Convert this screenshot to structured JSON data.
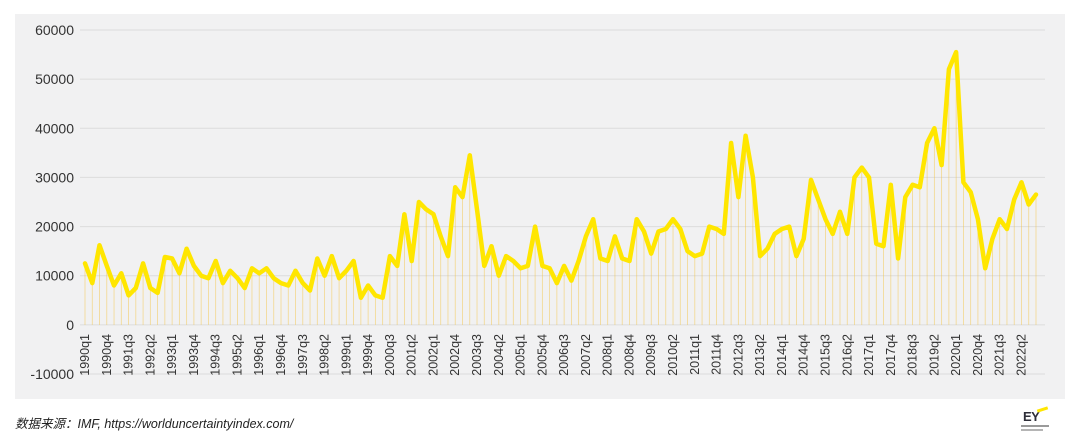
{
  "source_text": "数据来源：IMF, https://worlduncertaintyindex.com/",
  "logo_text": "EY",
  "colors": {
    "line": "#ffe600",
    "panel": "#f1f1f2",
    "grid": "#dcdcdc",
    "stem": "#f4c23c"
  },
  "chart_data": {
    "type": "line",
    "title": "",
    "xlabel": "",
    "ylabel": "",
    "ylim": [
      -10000,
      60000
    ],
    "yticks": [
      -10000,
      0,
      10000,
      20000,
      30000,
      40000,
      50000,
      60000
    ],
    "ytick_labels": [
      "-10000",
      "0",
      "10000",
      "20000",
      "30000",
      "40000",
      "50000",
      "60000"
    ],
    "grid": true,
    "legend": "none",
    "x_labels": [
      "1990q1",
      "1990q4",
      "1991q3",
      "1992q2",
      "1993q1",
      "1993q4",
      "1994q3",
      "1995q2",
      "1996q1",
      "1996q4",
      "1997q3",
      "1998q2",
      "1999q1",
      "1999q4",
      "2000q3",
      "2001q2",
      "2002q1",
      "2002q4",
      "2003q3",
      "2004q2",
      "2005q1",
      "2005q4",
      "2006q3",
      "2007q2",
      "2008q1",
      "2008q4",
      "2009q3",
      "2010q2",
      "2011q1",
      "2011q4",
      "2012q3",
      "2013q2",
      "2014q1",
      "2014q4",
      "2015q3",
      "2016q2",
      "2017q1",
      "2017q4",
      "2018q3",
      "2019q2",
      "2020q1",
      "2020q4",
      "2021q3",
      "2022q2"
    ],
    "label_every": 3,
    "values": [
      12500,
      8500,
      16200,
      12000,
      8000,
      10500,
      6000,
      7500,
      12500,
      7500,
      6500,
      13800,
      13500,
      10500,
      15500,
      12000,
      10000,
      9500,
      13000,
      8500,
      11000,
      9500,
      7500,
      11500,
      10500,
      11500,
      9500,
      8500,
      8000,
      11000,
      8500,
      7000,
      13500,
      10000,
      14000,
      9500,
      11000,
      13000,
      5500,
      8000,
      6000,
      5500,
      14000,
      12000,
      22500,
      13000,
      25000,
      23500,
      22500,
      18000,
      14000,
      28000,
      26000,
      34500,
      23500,
      12000,
      16000,
      10000,
      14000,
      13000,
      11500,
      12000,
      20000,
      12000,
      11500,
      8500,
      12000,
      9000,
      13000,
      18000,
      21500,
      13500,
      13000,
      18000,
      13500,
      13000,
      21500,
      19000,
      14500,
      19000,
      19500,
      21500,
      19500,
      15000,
      14000,
      14500,
      20000,
      19500,
      18500,
      37000,
      26000,
      38500,
      30000,
      14000,
      15500,
      18500,
      19500,
      20000,
      14000,
      17500,
      29500,
      25500,
      21500,
      18500,
      23000,
      18500,
      30000,
      32000,
      30000,
      16500,
      16000,
      28500,
      13500,
      26000,
      28500,
      28000,
      37000,
      40000,
      32500,
      52000,
      55500,
      29000,
      27000,
      21500,
      11500,
      17500,
      21500,
      19500,
      25500,
      29000,
      24500,
      26500
    ]
  }
}
